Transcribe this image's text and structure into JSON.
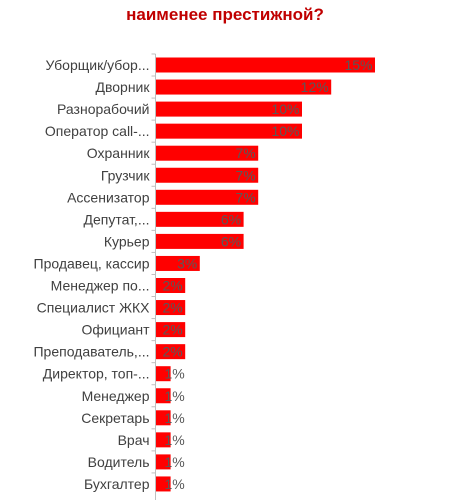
{
  "chart_data": {
    "type": "bar",
    "orientation": "horizontal",
    "title": "наименее престижной?",
    "categories": [
      "Уборщик/убор...",
      "Дворник",
      "Разнорабочий",
      "Оператор call-...",
      "Охранник",
      "Грузчик",
      "Ассенизатор",
      "Депутат,...",
      "Курьер",
      "Продавец, кассир",
      "Менеджер по...",
      "Специалист ЖКХ",
      "Официант",
      "Преподаватель,...",
      "Директор, топ-...",
      "Менеджер",
      "Секретарь",
      "Врач",
      "Водитель",
      "Бухгалтер"
    ],
    "values": [
      15,
      12,
      10,
      10,
      7,
      7,
      7,
      6,
      6,
      3,
      2,
      2,
      2,
      2,
      1,
      1,
      1,
      1,
      1,
      1
    ],
    "value_labels": [
      "15%",
      "12%",
      "10%",
      "10%",
      "7%",
      "7%",
      "7%",
      "6%",
      "6%",
      "3%",
      "2%",
      "2%",
      "2%",
      "2%",
      "1%",
      "1%",
      "1%",
      "1%",
      "1%",
      "1%"
    ],
    "bar_color": "#ff0000",
    "title_color": "#c00000",
    "grid": false,
    "legend": "none"
  }
}
